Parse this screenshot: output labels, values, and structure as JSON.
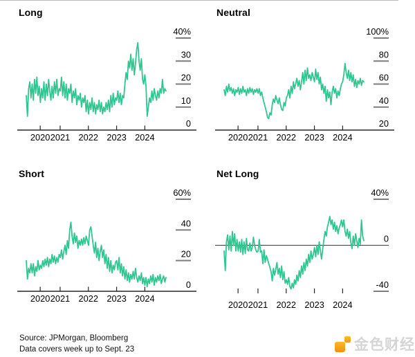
{
  "style": {
    "line_color": "#2FC690",
    "axis_color": "#262626",
    "dash_color": "#7d7d7d",
    "text_color": "#000000",
    "zero_line_color": "#3a3a3a",
    "top_rule_color": "#b9b9b9",
    "logo_orange": "#F5A623",
    "logo_text_color": "#d5d5d5"
  },
  "footer": {
    "line1": "Source: JPMorgan, Bloomberg",
    "line2": "Data covers week up to Sept. 23"
  },
  "logo": {
    "text": "金色财经"
  },
  "chart_data": [
    {
      "type": "line",
      "title": "Long",
      "legend": "none",
      "grid": "off",
      "x": {
        "start": 2019.8,
        "end": 2024.75,
        "tick_years": [
          2020,
          2021,
          2022,
          2023,
          2024
        ],
        "tick_labels": [
          "2020",
          "2021",
          "2022",
          "2023",
          "2024"
        ]
      },
      "ylim": [
        0,
        40
      ],
      "yticks": [
        {
          "v": 40,
          "label": "40%"
        },
        {
          "v": 30,
          "label": "30"
        },
        {
          "v": 20,
          "label": "20"
        },
        {
          "v": 10,
          "label": "10"
        },
        {
          "v": 0,
          "label": "0"
        }
      ],
      "baseline": "bottom",
      "values": [
        15,
        6,
        18,
        21,
        14,
        20,
        13,
        22,
        16,
        23,
        15,
        19,
        12,
        18,
        14,
        21,
        13,
        20,
        15,
        22,
        17,
        13,
        19,
        14,
        21,
        16,
        22,
        15,
        18,
        17,
        23,
        15,
        21,
        14,
        20,
        13,
        18,
        16,
        20,
        12,
        17,
        14,
        18,
        11,
        15,
        13,
        16,
        10,
        14,
        12,
        15,
        8,
        13,
        7,
        12,
        9,
        14,
        8,
        12,
        7,
        11,
        9,
        13,
        8,
        12,
        7,
        10,
        8,
        12,
        9,
        13,
        8,
        15,
        10,
        16,
        11,
        14,
        13,
        17,
        12,
        16,
        11,
        15,
        14,
        20,
        25,
        22,
        30,
        27,
        33,
        26,
        31,
        24,
        29,
        35,
        38,
        30,
        26,
        31,
        22,
        20,
        24,
        19,
        6,
        10,
        14,
        12,
        17,
        13,
        18,
        15,
        13,
        17,
        14,
        18,
        16,
        22,
        16,
        18,
        17
      ]
    },
    {
      "type": "line",
      "title": "Neutral",
      "legend": "none",
      "grid": "off",
      "x": {
        "start": 2019.8,
        "end": 2024.75,
        "tick_years": [
          2020,
          2021,
          2022,
          2023,
          2024
        ],
        "tick_labels": [
          "2020",
          "2021",
          "2022",
          "2023",
          "2024"
        ]
      },
      "ylim": [
        20,
        100
      ],
      "yticks": [
        {
          "v": 100,
          "label": "100%"
        },
        {
          "v": 80,
          "label": "80"
        },
        {
          "v": 60,
          "label": "60"
        },
        {
          "v": 40,
          "label": "40"
        },
        {
          "v": 20,
          "label": "20"
        }
      ],
      "baseline": "bottom",
      "values": [
        55,
        50,
        58,
        53,
        60,
        54,
        57,
        52,
        56,
        50,
        55,
        53,
        57,
        51,
        56,
        52,
        58,
        53,
        55,
        50,
        56,
        52,
        57,
        53,
        56,
        51,
        55,
        53,
        56,
        52,
        56,
        50,
        53,
        48,
        44,
        40,
        36,
        31,
        30,
        35,
        33,
        42,
        47,
        44,
        50,
        46,
        43,
        48,
        42,
        38,
        37,
        44,
        41,
        48,
        50,
        55,
        48,
        58,
        52,
        62,
        56,
        60,
        65,
        58,
        63,
        55,
        62,
        70,
        60,
        72,
        63,
        74,
        65,
        68,
        63,
        70,
        66,
        62,
        73,
        64,
        70,
        60,
        66,
        55,
        60,
        52,
        58,
        45,
        55,
        48,
        53,
        42,
        53,
        58,
        52,
        56,
        48,
        54,
        50,
        56,
        60,
        62,
        68,
        78,
        70,
        65,
        72,
        63,
        70,
        62,
        68,
        58,
        64,
        57,
        63,
        60,
        65,
        59,
        63,
        62
      ]
    },
    {
      "type": "line",
      "title": "Short",
      "legend": "none",
      "grid": "off",
      "x": {
        "start": 2019.8,
        "end": 2024.75,
        "tick_years": [
          2020,
          2021,
          2022,
          2023,
          2024
        ],
        "tick_labels": [
          "2020",
          "2021",
          "2022",
          "2023",
          "2024"
        ]
      },
      "ylim": [
        0,
        60
      ],
      "yticks": [
        {
          "v": 60,
          "label": "60%"
        },
        {
          "v": 40,
          "label": "40"
        },
        {
          "v": 20,
          "label": "20"
        },
        {
          "v": 0,
          "label": "0"
        }
      ],
      "baseline": "bottom",
      "values": [
        20,
        8,
        15,
        12,
        18,
        12,
        18,
        10,
        16,
        13,
        20,
        14,
        17,
        15,
        20,
        16,
        21,
        17,
        22,
        16,
        21,
        18,
        24,
        19,
        23,
        18,
        22,
        19,
        24,
        22,
        27,
        21,
        26,
        30,
        24,
        33,
        28,
        40,
        45,
        36,
        31,
        38,
        32,
        36,
        28,
        33,
        30,
        34,
        30,
        35,
        31,
        36,
        33,
        30,
        40,
        42,
        36,
        30,
        25,
        32,
        22,
        28,
        20,
        26,
        30,
        22,
        27,
        18,
        24,
        15,
        22,
        13,
        20,
        12,
        17,
        14,
        19,
        20,
        14,
        22,
        12,
        18,
        10,
        16,
        8,
        14,
        7,
        12,
        6,
        11,
        8,
        13,
        8,
        15,
        9,
        6,
        10,
        7,
        12,
        5,
        9,
        4,
        9,
        3,
        8,
        5,
        10,
        6,
        11,
        4,
        9,
        6,
        10,
        7,
        11,
        5,
        8,
        10,
        6,
        9
      ]
    },
    {
      "type": "line",
      "title": "Net Long",
      "legend": "none",
      "grid": "off",
      "x": {
        "start": 2019.8,
        "end": 2024.75,
        "tick_years": [
          2020,
          2021,
          2022,
          2023,
          2024
        ],
        "tick_labels": [
          "2020",
          "2021",
          "2022",
          "2023",
          "2024"
        ]
      },
      "ylim": [
        -40,
        40
      ],
      "yticks": [
        {
          "v": 40,
          "label": "40%"
        },
        {
          "v": 0,
          "label": "0"
        },
        {
          "v": -40,
          "label": "-40"
        }
      ],
      "baseline": "zero",
      "zero_line": 0,
      "values": [
        -5,
        -22,
        3,
        9,
        -4,
        8,
        -5,
        12,
        0,
        10,
        -5,
        5,
        -5,
        3,
        -6,
        5,
        -8,
        3,
        -7,
        6,
        -4,
        -5,
        2,
        -5,
        -2,
        7,
        0,
        -4,
        -6,
        -5,
        5,
        -6,
        -5,
        -16,
        -4,
        -15,
        -9,
        -12,
        -16,
        -19,
        -23,
        -31,
        -20,
        -26,
        -21,
        -15,
        -25,
        -20,
        -28,
        -18,
        -30,
        -23,
        -33,
        -30,
        -34,
        -28,
        -36,
        -38,
        -33,
        -37,
        -30,
        -34,
        -26,
        -31,
        -22,
        -28,
        -18,
        -25,
        -15,
        -22,
        -12,
        -18,
        -8,
        -15,
        -5,
        -12,
        -8,
        -2,
        -10,
        0,
        -8,
        3,
        -5,
        -12,
        -3,
        5,
        12,
        8,
        16,
        20,
        25,
        18,
        22,
        14,
        20,
        12,
        17,
        10,
        15,
        18,
        22,
        16,
        22,
        12,
        8,
        14,
        6,
        12,
        2,
        -3,
        8,
        0,
        10,
        4,
        -2,
        6,
        1,
        22,
        8,
        4
      ]
    }
  ]
}
